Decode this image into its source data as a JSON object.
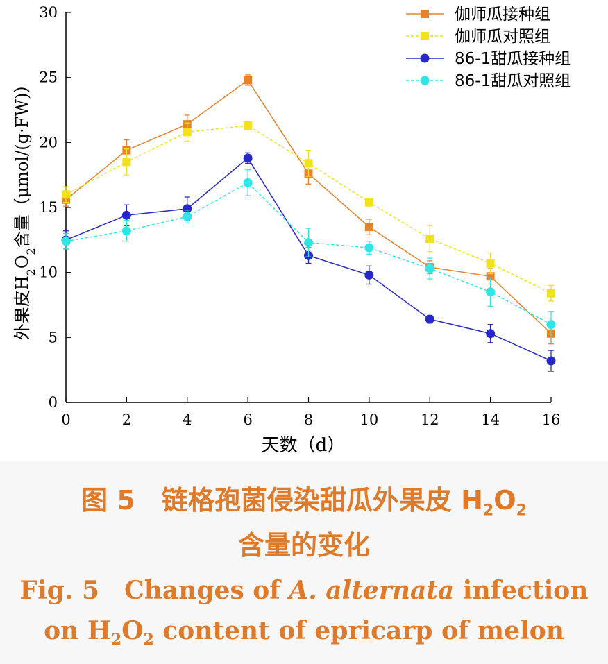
{
  "chart_data": {
    "type": "line",
    "x": [
      0,
      2,
      4,
      6,
      8,
      10,
      12,
      14,
      16
    ],
    "xlabel": "天数（d）",
    "ylabel_main": "外果皮H",
    "ylabel_sub1": "2",
    "ylabel_mid": "O",
    "ylabel_sub2": "2",
    "ylabel_tail": "含量（μmol/(g·FW)）",
    "xlim": [
      0,
      16
    ],
    "ylim": [
      0,
      30
    ],
    "xticks": [
      "0",
      "2",
      "4",
      "6",
      "8",
      "10",
      "12",
      "14",
      "16"
    ],
    "yticks": [
      "0",
      "5",
      "10",
      "15",
      "20",
      "25",
      "30"
    ],
    "grid": false,
    "legend_position": "top-right",
    "series": [
      {
        "name": "伽师瓜接种组",
        "color": "#e8822a",
        "marker": "square",
        "dashed": false,
        "values": [
          15.6,
          19.4,
          21.4,
          24.8,
          17.6,
          13.5,
          10.4,
          9.7,
          5.3
        ],
        "errors": [
          0.5,
          0.8,
          0.7,
          0.4,
          0.8,
          0.6,
          0.5,
          0.6,
          0.8
        ]
      },
      {
        "name": "伽师瓜对照组",
        "color": "#f2e21a",
        "marker": "square",
        "dashed": true,
        "values": [
          16.0,
          18.5,
          20.8,
          21.3,
          18.4,
          15.4,
          12.6,
          10.7,
          8.4
        ],
        "errors": [
          0.6,
          1.0,
          0.7,
          0.3,
          1.0,
          0.3,
          1.0,
          0.8,
          0.6
        ]
      },
      {
        "name": "86-1甜瓜接种组",
        "color": "#2828c8",
        "marker": "circle",
        "dashed": false,
        "values": [
          12.5,
          14.4,
          14.9,
          18.8,
          11.3,
          9.8,
          6.4,
          5.3,
          3.2
        ],
        "errors": [
          0.7,
          0.8,
          0.9,
          0.4,
          0.6,
          0.7,
          0.3,
          0.7,
          0.8
        ]
      },
      {
        "name": "86-1甜瓜对照组",
        "color": "#2ee6e6",
        "marker": "circle",
        "dashed": true,
        "values": [
          12.4,
          13.2,
          14.3,
          16.9,
          12.3,
          11.9,
          10.3,
          8.5,
          6.0
        ],
        "errors": [
          0.6,
          0.8,
          0.5,
          1.0,
          1.1,
          0.5,
          0.8,
          1.1,
          1.0
        ]
      }
    ]
  },
  "caption": {
    "cn_line1_prefix": "图 5　链格孢菌侵染甜瓜外果皮 H",
    "cn_line1_sub1": "2",
    "cn_line1_mid": "O",
    "cn_line1_sub2": "2",
    "cn_line2": "含量的变化",
    "en_line1_prefix": "Fig. 5　Changes of ",
    "en_line1_italic": "A. alternata",
    "en_line1_suffix": " infection",
    "en_line2_prefix": "on H",
    "en_line2_sub1": "2",
    "en_line2_mid": "O",
    "en_line2_sub2": "2",
    "en_line2_suffix": " content of epricarp of melon"
  }
}
